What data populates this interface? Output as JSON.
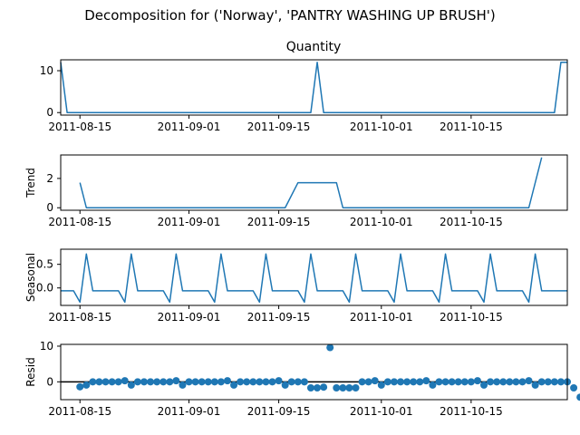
{
  "figure": {
    "suptitle": "Decomposition for ('Norway', 'PANTRY WASHING UP BRUSH')"
  },
  "chart_data": [
    {
      "type": "line",
      "name": "observed",
      "title": "Quantity",
      "ylabel": "",
      "x_start": "2011-08-12",
      "x_end": "2011-10-30",
      "ylim": [
        -0.6,
        12.6
      ],
      "yticks": [
        0,
        10
      ],
      "xticks": [
        "2011-08-15",
        "2011-09-01",
        "2011-09-15",
        "2011-10-01",
        "2011-10-15"
      ],
      "color": "#1f77b4",
      "points": [
        {
          "x": "2011-08-12",
          "y": 12
        },
        {
          "x": "2011-08-13",
          "y": 0
        },
        {
          "x": "2011-09-20",
          "y": 0
        },
        {
          "x": "2011-09-21",
          "y": 12
        },
        {
          "x": "2011-09-22",
          "y": 0
        },
        {
          "x": "2011-10-28",
          "y": 0
        },
        {
          "x": "2011-10-29",
          "y": 12
        },
        {
          "x": "2011-10-30",
          "y": 12
        }
      ]
    },
    {
      "type": "line",
      "name": "trend",
      "title": "",
      "ylabel": "Trend",
      "x_start": "2011-08-12",
      "x_end": "2011-10-30",
      "ylim": [
        -0.17,
        3.6
      ],
      "yticks": [
        0,
        2
      ],
      "xticks": [
        "2011-08-15",
        "2011-09-01",
        "2011-09-15",
        "2011-10-01",
        "2011-10-15"
      ],
      "color": "#1f77b4",
      "points": [
        {
          "x": "2011-08-15",
          "y": 1.71
        },
        {
          "x": "2011-08-16",
          "y": 0
        },
        {
          "x": "2011-09-16",
          "y": 0
        },
        {
          "x": "2011-09-18",
          "y": 1.71
        },
        {
          "x": "2011-09-24",
          "y": 1.71
        },
        {
          "x": "2011-09-25",
          "y": 0
        },
        {
          "x": "2011-10-24",
          "y": 0
        },
        {
          "x": "2011-10-26",
          "y": 3.43
        }
      ]
    },
    {
      "type": "line",
      "name": "seasonal",
      "title": "",
      "ylabel": "Seasonal",
      "x_start": "2011-08-12",
      "x_end": "2011-10-30",
      "ylim": [
        -0.37,
        0.82
      ],
      "yticks": [
        0.0,
        0.5
      ],
      "ytick_labels": [
        "0.0",
        "0.5"
      ],
      "xticks": [
        "2011-08-15",
        "2011-09-01",
        "2011-09-15",
        "2011-10-01",
        "2011-10-15"
      ],
      "color": "#1f77b4",
      "period_days": 7,
      "period_start": "2011-08-12",
      "cycle_values": [
        -0.06,
        -0.06,
        -0.06,
        -0.3,
        0.72,
        -0.06,
        -0.06
      ]
    },
    {
      "type": "scatter",
      "name": "resid",
      "title": "",
      "ylabel": "Resid",
      "x_start": "2011-08-12",
      "x_end": "2011-10-30",
      "ylim": [
        -5,
        10.5
      ],
      "yticks": [
        0,
        10
      ],
      "xticks": [
        "2011-08-15",
        "2011-09-01",
        "2011-09-15",
        "2011-10-01",
        "2011-10-15"
      ],
      "color": "#1f77b4",
      "zero_line": true,
      "start_date": "2011-08-15",
      "values": [
        -1.4,
        -0.9,
        0,
        0,
        0,
        0,
        0,
        0.3,
        -0.9,
        0,
        0,
        0,
        0,
        0,
        0,
        0.3,
        -0.9,
        0,
        0,
        0,
        0,
        0,
        0,
        0.3,
        -0.9,
        0,
        0,
        0,
        0,
        0,
        0,
        0.3,
        -0.9,
        0,
        0,
        0,
        -1.7,
        -1.7,
        -1.5,
        9.6,
        -1.7,
        -1.7,
        -1.7,
        -1.7,
        0,
        0,
        0.3,
        -0.9,
        0,
        0,
        0,
        0,
        0,
        0,
        0.3,
        -0.9,
        0,
        0,
        0,
        0,
        0,
        0,
        0.3,
        -0.9,
        0,
        0,
        0,
        0,
        0,
        0,
        0.3,
        -0.9,
        0,
        0,
        0,
        0,
        0,
        -1.7,
        -4.3
      ]
    }
  ]
}
